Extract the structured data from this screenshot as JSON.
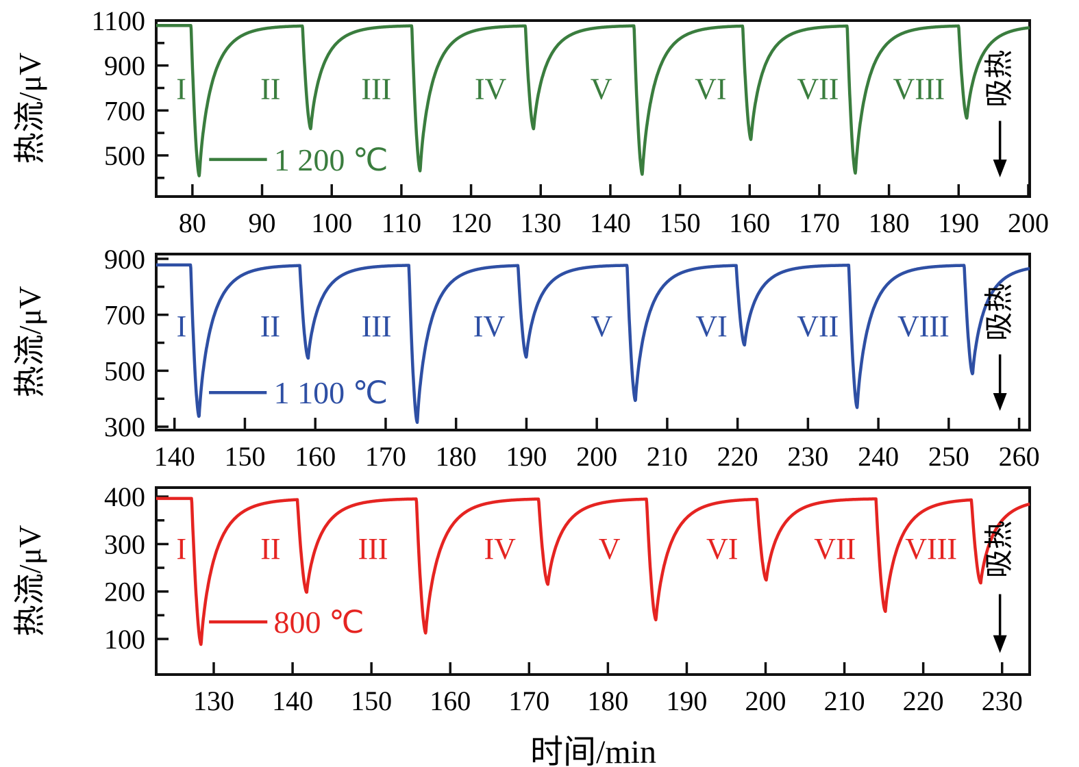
{
  "figure": {
    "x_axis_title": "时间/min",
    "y_axis_title": "热流/μV",
    "endo_annotation": "吸热",
    "cycle_labels": [
      "I",
      "II",
      "III",
      "IV",
      "V",
      "VI",
      "VII",
      "VIII"
    ]
  },
  "chart_data": [
    {
      "type": "line",
      "series_name": "1 200 ℃",
      "color": "#3a7d3e",
      "x_range": [
        74.8,
        200.2
      ],
      "y_range": [
        317,
        1100
      ],
      "x_ticks": [
        80,
        90,
        100,
        110,
        120,
        130,
        140,
        150,
        160,
        170,
        180,
        190,
        200
      ],
      "y_ticks": [
        500,
        700,
        900,
        1100
      ],
      "y_minor_ticks": [
        400,
        600,
        800,
        1000
      ],
      "baseline": 1078,
      "dips": [
        {
          "t": 81.0,
          "min": 408
        },
        {
          "t": 97.0,
          "min": 618
        },
        {
          "t": 112.7,
          "min": 430
        },
        {
          "t": 129.0,
          "min": 618
        },
        {
          "t": 144.6,
          "min": 415
        },
        {
          "t": 160.2,
          "min": 570
        },
        {
          "t": 175.2,
          "min": 420
        },
        {
          "t": 191.2,
          "min": 665
        }
      ],
      "cycle_label_x": [
        78.4,
        91.2,
        106.4,
        122.8,
        138.7,
        154.4,
        169.8,
        184.3
      ],
      "cycle_label_y": 800,
      "legend": {
        "label": "1 200 ℃",
        "line_x": [
          82.4,
          90.7
        ],
        "text_x": 91.7,
        "y": 482
      }
    },
    {
      "type": "line",
      "series_name": "1 100 ℃",
      "color": "#2e4fa4",
      "x_range": [
        137.4,
        261.5
      ],
      "y_range": [
        288,
        917
      ],
      "x_ticks": [
        140,
        150,
        160,
        170,
        180,
        190,
        200,
        210,
        220,
        230,
        240,
        250,
        260
      ],
      "y_ticks": [
        300,
        500,
        700,
        900
      ],
      "y_minor_ticks": [
        400,
        600,
        800
      ],
      "baseline": 878,
      "dips": [
        {
          "t": 143.5,
          "min": 335
        },
        {
          "t": 159.0,
          "min": 545
        },
        {
          "t": 174.5,
          "min": 315
        },
        {
          "t": 190.0,
          "min": 548
        },
        {
          "t": 205.5,
          "min": 392
        },
        {
          "t": 221.0,
          "min": 592
        },
        {
          "t": 237.0,
          "min": 368
        },
        {
          "t": 253.4,
          "min": 488
        }
      ],
      "cycle_label_x": [
        141.0,
        153.6,
        168.7,
        184.7,
        200.7,
        216.3,
        231.4,
        246.4
      ],
      "cycle_label_y": 662,
      "legend": {
        "label": "1 100 ℃",
        "line_x": [
          144.9,
          153.1
        ],
        "text_x": 154.1,
        "y": 422
      }
    },
    {
      "type": "line",
      "series_name": "800 ℃",
      "color": "#e52421",
      "x_range": [
        122.7,
        233.5
      ],
      "y_range": [
        25,
        419
      ],
      "x_ticks": [
        130,
        140,
        150,
        160,
        170,
        180,
        190,
        200,
        210,
        220,
        230
      ],
      "y_ticks": [
        100,
        200,
        300,
        400
      ],
      "y_minor_ticks": [
        150,
        250,
        350
      ],
      "baseline": 396,
      "dips": [
        {
          "t": 128.4,
          "min": 88
        },
        {
          "t": 141.8,
          "min": 198
        },
        {
          "t": 156.9,
          "min": 112
        },
        {
          "t": 172.4,
          "min": 215
        },
        {
          "t": 186.1,
          "min": 140
        },
        {
          "t": 200.1,
          "min": 224
        },
        {
          "t": 215.2,
          "min": 158
        },
        {
          "t": 227.3,
          "min": 218
        }
      ],
      "cycle_label_x": [
        125.9,
        137.2,
        150.2,
        166.3,
        180.2,
        194.5,
        208.8,
        221.0
      ],
      "cycle_label_y": 292,
      "legend": {
        "label": "800 ℃",
        "line_x": [
          129.4,
          136.8
        ],
        "text_x": 137.6,
        "y": 136
      }
    }
  ]
}
